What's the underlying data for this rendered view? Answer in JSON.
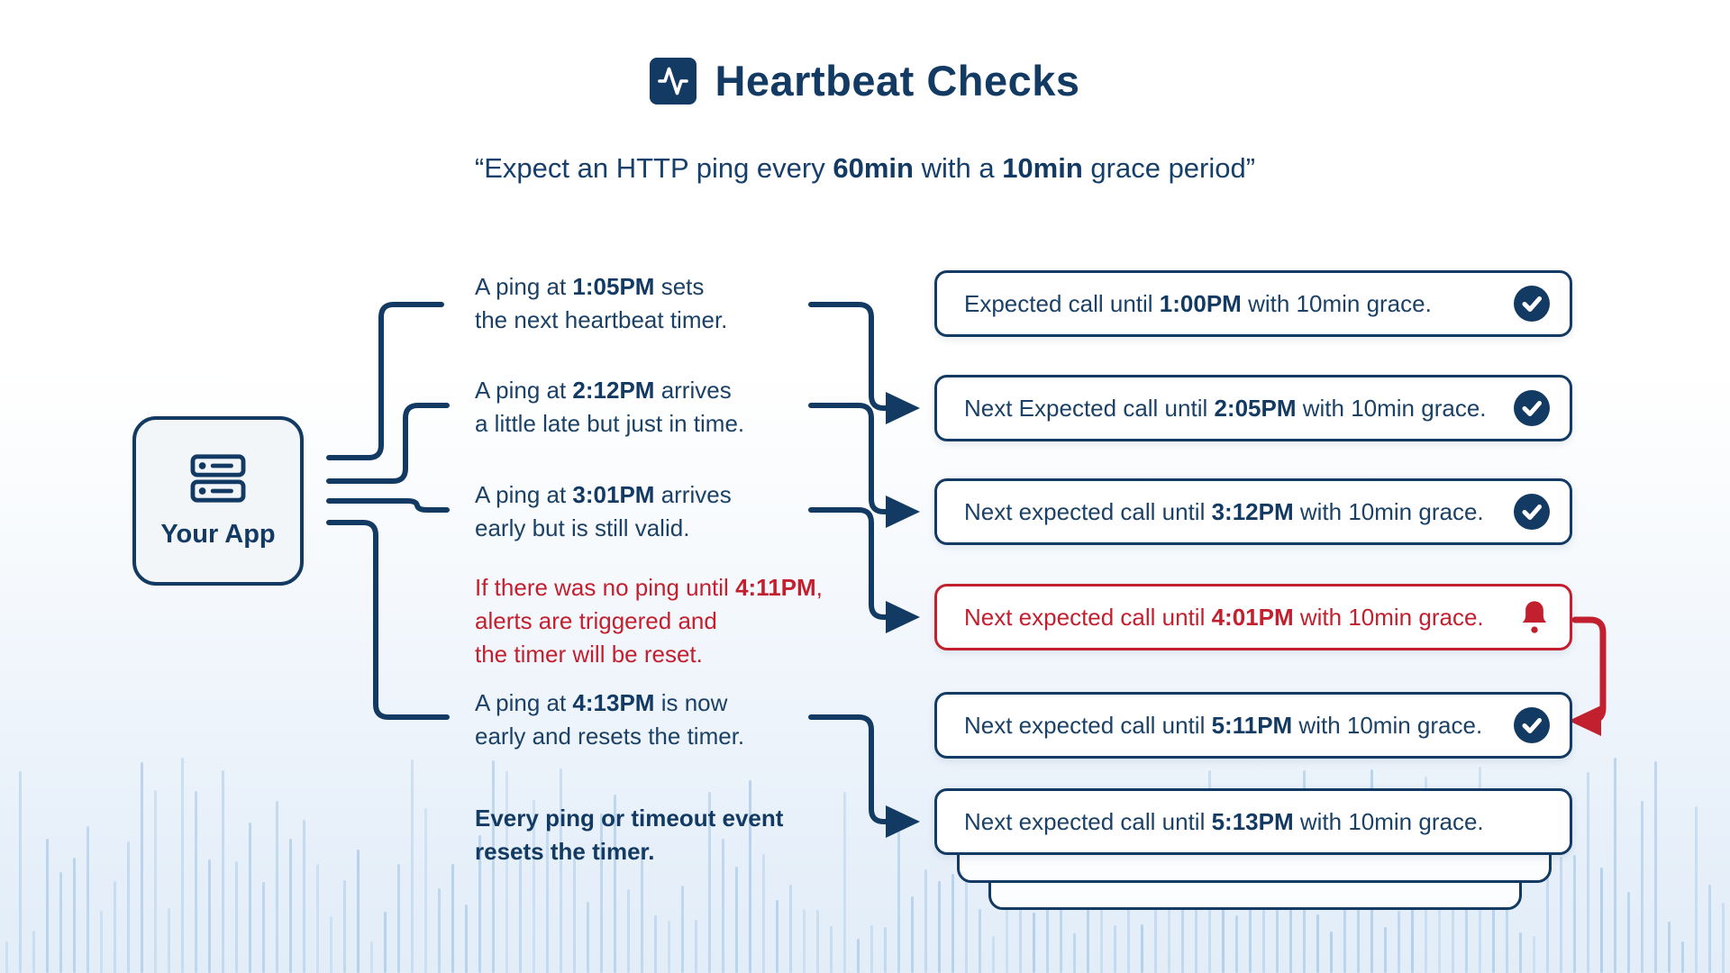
{
  "header": {
    "title": "Heartbeat Checks",
    "title_icon": "activity-icon",
    "subtitle_pre": "“Expect an HTTP ping every ",
    "subtitle_bold1": "60min",
    "subtitle_mid": " with a ",
    "subtitle_bold2": "10min",
    "subtitle_post": " grace period”"
  },
  "app_node": {
    "label": "Your App",
    "icon": "server-icon"
  },
  "notes": [
    {
      "pre": "A ping at ",
      "time": "1:05PM",
      "post": " sets",
      "line2": "the next heartbeat timer."
    },
    {
      "pre": "A ping at ",
      "time": "2:12PM",
      "post": " arrives",
      "line2": "a little late but just in time."
    },
    {
      "pre": "A ping at ",
      "time": "3:01PM",
      "post": " arrives",
      "line2": "early but is still valid."
    },
    {
      "pre": "If there was no ping until ",
      "time": "4:11PM",
      "post": ",",
      "line2": "alerts are triggered and",
      "line3": "the timer will be reset."
    },
    {
      "pre": "A ping at ",
      "time": "4:13PM",
      "post": " is now",
      "line2": "early and resets the timer."
    },
    {
      "pre": "Every ping or timeout event",
      "time": "",
      "post": "",
      "line2": "resets the timer."
    }
  ],
  "boxes": [
    {
      "pre": "Expected call until ",
      "time": "1:00PM",
      "post": " with 10min grace.",
      "icon": "check",
      "status": "ok"
    },
    {
      "pre": "Next Expected call until ",
      "time": "2:05PM",
      "post": " with 10min grace.",
      "icon": "check",
      "status": "ok"
    },
    {
      "pre": "Next expected call until ",
      "time": "3:12PM",
      "post": " with 10min grace.",
      "icon": "check",
      "status": "ok"
    },
    {
      "pre": "Next expected call until ",
      "time": "4:01PM",
      "post": " with 10min grace.",
      "icon": "bell",
      "status": "alert"
    },
    {
      "pre": "Next expected call until ",
      "time": "5:11PM",
      "post": " with 10min grace.",
      "icon": "check",
      "status": "ok"
    },
    {
      "pre": "Next expected call until ",
      "time": "5:13PM",
      "post": " with 10min grace.",
      "icon": "none",
      "status": "pending"
    }
  ],
  "colors": {
    "navy": "#123a63",
    "red": "#c3202f",
    "box_bg": "#ffffff",
    "page_tint": "#e2edf8"
  }
}
